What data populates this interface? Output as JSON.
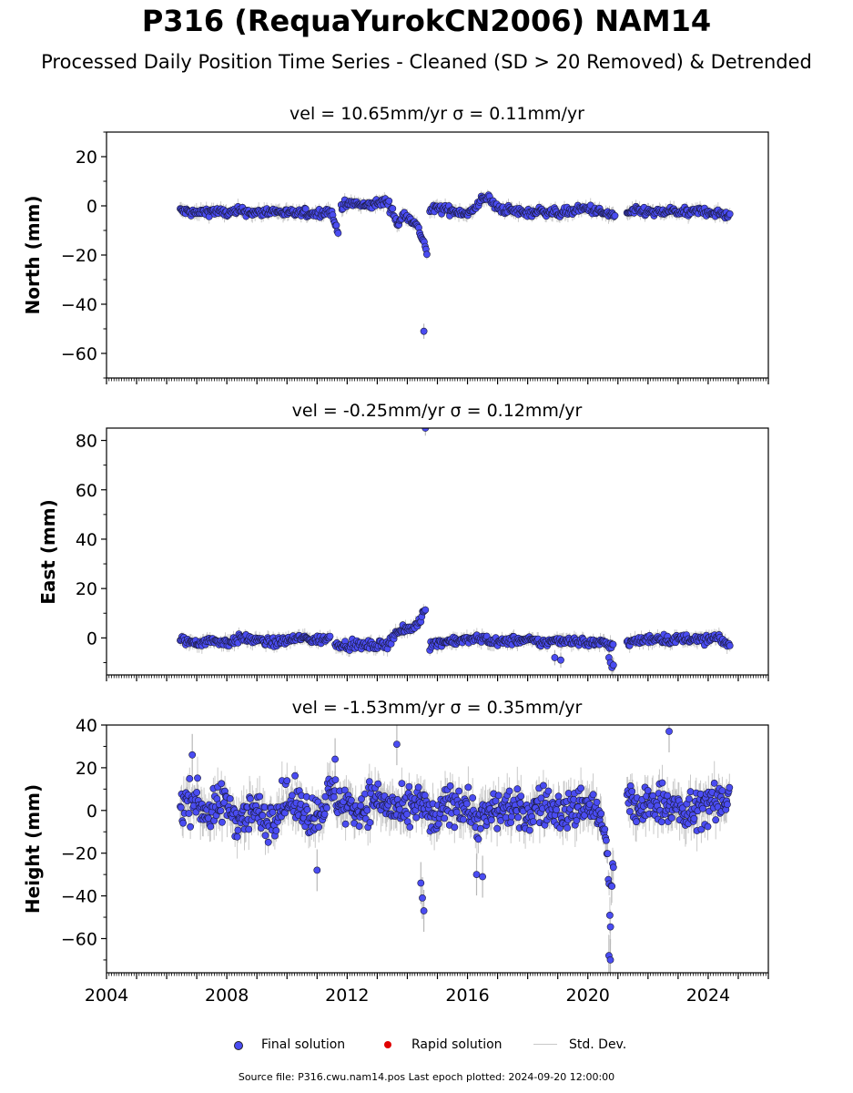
{
  "title": "P316 (RequaYurokCN2006) NAM14",
  "subtitle": "Processed Daily Position Time Series - Cleaned (SD > 20 Removed) & Detrended",
  "footer": "Source file: P316.cwu.nam14.pos  Last epoch plotted: 2024-09-20 12:00:00",
  "legend": {
    "final": "Final solution",
    "rapid": "Rapid solution",
    "std": "Std. Dev."
  },
  "colors": {
    "final": "#4a4cf2",
    "rapid": "#e00000",
    "stddev": "#c8c8c8"
  },
  "chart_data": [
    {
      "type": "scatter",
      "panel": "north",
      "title": "vel = 10.65mm/yr   σ = 0.11mm/yr",
      "ylabel": "North (mm)",
      "xlabel": "",
      "xlim": [
        2004,
        2026
      ],
      "ylim": [
        -70,
        30
      ],
      "yticks": [
        "20",
        "0",
        "−20",
        "−40",
        "−60"
      ],
      "ytick_values": [
        20,
        0,
        -20,
        -40,
        -60
      ],
      "series": [
        {
          "name": "Final solution",
          "segments": [
            {
              "x": [
                2006.45,
                2007.0,
                2007.5,
                2008.0,
                2008.5,
                2009.0,
                2009.5,
                2010.0,
                2010.5,
                2011.0,
                2011.45,
                2011.55,
                2011.7
              ],
              "y": [
                -2,
                -3,
                -2,
                -3,
                -2,
                -3,
                -2,
                -3,
                -3,
                -3,
                -2,
                -6,
                -10
              ]
            },
            {
              "x": [
                2011.8,
                2012.2,
                2012.6,
                2013.0,
                2013.3,
                2013.5,
                2013.7,
                2013.9,
                2014.1,
                2014.3,
                2014.5,
                2014.6,
                2014.65
              ],
              "y": [
                0,
                1,
                0,
                1,
                2,
                -2,
                -8,
                -3,
                -5,
                -8,
                -13,
                -17,
                -19
              ]
            },
            {
              "x": [
                2014.75,
                2015.0,
                2015.5,
                2016.0,
                2016.3,
                2016.5,
                2016.7,
                2017.0,
                2017.5,
                2018.0,
                2018.5,
                2019.0,
                2019.5,
                2020.0,
                2020.5,
                2020.9
              ],
              "y": [
                -2,
                -1,
                -2,
                -3,
                -1,
                4,
                3,
                -1,
                -2,
                -3,
                -2,
                -3,
                -2,
                -1,
                -3,
                -4
              ]
            },
            {
              "x": [
                2021.3,
                2021.8,
                2022.3,
                2022.8,
                2023.3,
                2023.8,
                2024.3,
                2024.72
              ],
              "y": [
                -3,
                -2,
                -3,
                -2,
                -3,
                -2,
                -3,
                -4
              ]
            }
          ],
          "outliers": {
            "x": [
              2014.55
            ],
            "y": [
              -51
            ]
          }
        },
        {
          "name": "Rapid solution",
          "x": [],
          "y": []
        }
      ]
    },
    {
      "type": "scatter",
      "panel": "east",
      "title": "vel = -0.25mm/yr   σ = 0.12mm/yr",
      "ylabel": "East (mm)",
      "xlabel": "",
      "xlim": [
        2004,
        2026
      ],
      "ylim": [
        -15,
        85
      ],
      "yticks": [
        "80",
        "60",
        "40",
        "20",
        "0"
      ],
      "ytick_values": [
        80,
        60,
        40,
        20,
        0
      ],
      "series": [
        {
          "name": "Final solution",
          "segments": [
            {
              "x": [
                2006.45,
                2007.0,
                2007.5,
                2008.0,
                2008.5,
                2009.0,
                2009.5,
                2010.0,
                2010.5,
                2011.0,
                2011.45
              ],
              "y": [
                -1,
                -2,
                -1,
                -2,
                0,
                -1,
                -2,
                -1,
                0,
                -1,
                0
              ]
            },
            {
              "x": [
                2011.6,
                2012.0,
                2012.5,
                2013.0,
                2013.3,
                2013.6,
                2013.9,
                2014.2,
                2014.4,
                2014.55,
                2014.62
              ],
              "y": [
                -2,
                -3,
                -3,
                -3,
                -3,
                2,
                3,
                4,
                7,
                11,
                13
              ]
            },
            {
              "x": [
                2014.75,
                2015.0,
                2015.5,
                2016.0,
                2016.5,
                2017.0,
                2017.5,
                2018.0,
                2018.5,
                2019.0,
                2019.5,
                2020.0,
                2020.5,
                2020.85
              ],
              "y": [
                -3,
                -2,
                -1,
                -1,
                0,
                -2,
                -1,
                -1,
                -2,
                -1,
                -1,
                -2,
                -2,
                -3
              ]
            },
            {
              "x": [
                2021.3,
                2021.8,
                2022.3,
                2022.8,
                2023.3,
                2023.8,
                2024.3,
                2024.72
              ],
              "y": [
                -2,
                -1,
                0,
                -1,
                0,
                -1,
                0,
                -3
              ]
            }
          ],
          "outliers": {
            "x": [
              2014.6,
              2018.9,
              2019.1,
              2020.7,
              2020.75,
              2020.8,
              2020.85
            ],
            "y": [
              85,
              -8,
              -9,
              -8,
              -10,
              -12,
              -11
            ]
          }
        },
        {
          "name": "Rapid solution",
          "x": [],
          "y": []
        }
      ]
    },
    {
      "type": "scatter",
      "panel": "height",
      "title": "vel = -1.53mm/yr   σ = 0.35mm/yr",
      "ylabel": "Height (mm)",
      "xlabel": "",
      "xlim": [
        2004,
        2026
      ],
      "ylim": [
        -76,
        40
      ],
      "yticks": [
        "40",
        "20",
        "0",
        "−20",
        "−40",
        "−60"
      ],
      "ytick_values": [
        40,
        20,
        0,
        -20,
        -40,
        -60
      ],
      "xticks": [
        "2004",
        "2008",
        "2012",
        "2016",
        "2020",
        "2024"
      ],
      "xtick_values": [
        2004,
        2008,
        2012,
        2016,
        2020,
        2024
      ],
      "series": [
        {
          "name": "Final solution",
          "segments": [
            {
              "x": [
                2006.45,
                2006.9,
                2007.4,
                2007.9,
                2008.4,
                2008.9,
                2009.4,
                2009.9,
                2010.4,
                2010.9,
                2011.45,
                2011.9,
                2012.4,
                2012.9,
                2013.4,
                2013.9,
                2014.4,
                2014.9,
                2015.4,
                2015.9,
                2016.4,
                2016.9,
                2017.4,
                2017.9,
                2018.4,
                2018.9,
                2019.4,
                2019.9,
                2020.4,
                2020.65,
                2020.75,
                2020.85
              ],
              "y": [
                2,
                6,
                -2,
                4,
                -4,
                0,
                -5,
                5,
                2,
                -3,
                8,
                3,
                0,
                6,
                2,
                -2,
                4,
                -6,
                4,
                3,
                -5,
                0,
                2,
                -3,
                3,
                0,
                -1,
                4,
                -2,
                -20,
                -50,
                -22
              ]
            },
            {
              "x": [
                2021.3,
                2021.8,
                2022.3,
                2022.8,
                2023.3,
                2023.8,
                2024.3,
                2024.72
              ],
              "y": [
                4,
                0,
                5,
                2,
                -3,
                3,
                2,
                8
              ]
            }
          ],
          "outliers": {
            "x": [
              2006.85,
              2011.0,
              2011.6,
              2013.65,
              2014.45,
              2014.5,
              2014.55,
              2016.3,
              2016.5,
              2020.7,
              2020.75,
              2022.7
            ],
            "y": [
              26,
              -28,
              24,
              31,
              -34,
              -41,
              -47,
              -30,
              -31,
              -68,
              -70,
              37
            ]
          }
        },
        {
          "name": "Rapid solution",
          "x": [],
          "y": []
        }
      ]
    }
  ]
}
